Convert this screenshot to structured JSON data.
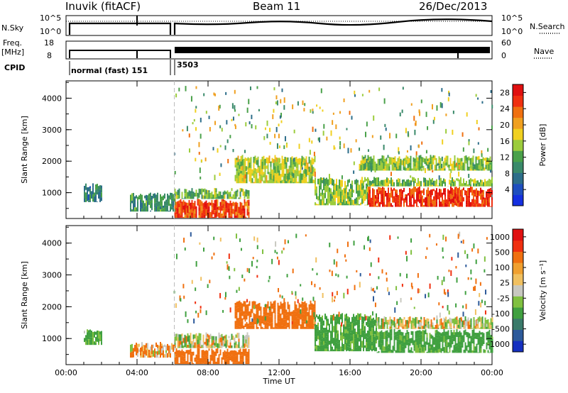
{
  "header": {
    "station": "Inuvik (fitACF)",
    "beam": "Beam 11",
    "date": "26/Dec/2013"
  },
  "top_panels": {
    "nsky_label": "N.Sky",
    "nsky_ticks": [
      "10^5",
      "10^0"
    ],
    "nsearch_label": "N.Search",
    "nsearch_ticks": [
      "10^5",
      "10^0"
    ],
    "freq_label_1": "Freq.",
    "freq_label_2": "[MHz]",
    "freq_ticks": [
      "18",
      "8"
    ],
    "nave_label": "Nave",
    "nave_ticks": [
      "60",
      "0"
    ],
    "cpid_label": "CPID",
    "cpid_1": "normal (fast) 151",
    "cpid_2": "3503"
  },
  "colors": {
    "power_scale": [
      "#1530e0",
      "#1f4fbf",
      "#2d6e8a",
      "#3a8a6a",
      "#4aa14a",
      "#9ccc3c",
      "#f0d020",
      "#f0a020",
      "#f07010",
      "#f03010",
      "#e01010"
    ],
    "velocity_scale": [
      "#e01010",
      "#f03010",
      "#f07010",
      "#f0a030",
      "#f0c060",
      "#c8c8c0",
      "#80c040",
      "#40a040",
      "#3a7a6a",
      "#2d5a9a",
      "#1530c0"
    ]
  },
  "chart_data": [
    {
      "type": "heatmap",
      "title": "Power",
      "ylabel": "Slant Range [km]",
      "yticks": [
        "1000",
        "2000",
        "3000",
        "4000"
      ],
      "ylim": [
        180,
        4550
      ],
      "xlabel": "Time UT",
      "xticks": [
        "00:00",
        "04:00",
        "08:00",
        "12:00",
        "16:00",
        "20:00",
        "00:00"
      ],
      "xlim_hours": [
        0,
        24
      ],
      "colorbar": {
        "label": "Power [dB]",
        "ticks": [
          "4",
          "8",
          "12",
          "16",
          "20",
          "24",
          "28"
        ],
        "range": [
          0,
          30
        ]
      },
      "regions": [
        {
          "t0": 6.1,
          "t1": 10.3,
          "r0": 200,
          "r1": 800,
          "value": 26
        },
        {
          "t0": 6.1,
          "t1": 10.3,
          "r0": 800,
          "r1": 1150,
          "value": 13
        },
        {
          "t0": 9.5,
          "t1": 14.0,
          "r0": 1300,
          "r1": 2200,
          "value": 16
        },
        {
          "t0": 14.0,
          "t1": 17.0,
          "r0": 600,
          "r1": 1500,
          "value": 14
        },
        {
          "t0": 17.0,
          "t1": 24.0,
          "r0": 550,
          "r1": 1200,
          "value": 27
        },
        {
          "t0": 17.0,
          "t1": 24.0,
          "r0": 1200,
          "r1": 1500,
          "value": 14
        },
        {
          "t0": 1.0,
          "t1": 2.0,
          "r0": 700,
          "r1": 1300,
          "value": 8
        },
        {
          "t0": 3.6,
          "t1": 6.1,
          "r0": 400,
          "r1": 1000,
          "value": 10
        },
        {
          "t0": 16.5,
          "t1": 24.0,
          "r0": 1700,
          "r1": 2200,
          "value": 14
        }
      ]
    },
    {
      "type": "heatmap",
      "title": "Velocity",
      "ylabel": "Slant Range [km]",
      "yticks": [
        "1000",
        "2000",
        "3000",
        "4000"
      ],
      "ylim": [
        180,
        4550
      ],
      "xlabel": "Time UT",
      "xticks": [
        "00:00",
        "04:00",
        "08:00",
        "12:00",
        "16:00",
        "20:00",
        "00:00"
      ],
      "xlim_hours": [
        0,
        24
      ],
      "colorbar": {
        "label": "Velocity [m s^-1]",
        "ticks": [
          "1000",
          "500",
          "100",
          "25",
          "-25",
          "-100",
          "-500",
          "-1000"
        ]
      },
      "regions": [
        {
          "t0": 6.1,
          "t1": 10.3,
          "r0": 200,
          "r1": 700,
          "value": 300
        },
        {
          "t0": 6.1,
          "t1": 10.3,
          "r0": 700,
          "r1": 1200,
          "value": 0
        },
        {
          "t0": 9.5,
          "t1": 14.0,
          "r0": 1300,
          "r1": 2200,
          "value": 300
        },
        {
          "t0": 14.0,
          "t1": 17.5,
          "r0": 600,
          "r1": 1800,
          "value": -200
        },
        {
          "t0": 17.5,
          "t1": 24.0,
          "r0": 550,
          "r1": 1300,
          "value": -200
        },
        {
          "t0": 17.5,
          "t1": 24.0,
          "r0": 1300,
          "r1": 1700,
          "value": 0
        },
        {
          "t0": 3.6,
          "t1": 6.1,
          "r0": 400,
          "r1": 900,
          "value": 100
        },
        {
          "t0": 1.0,
          "t1": 2.0,
          "r0": 800,
          "r1": 1300,
          "value": -150
        }
      ]
    }
  ]
}
